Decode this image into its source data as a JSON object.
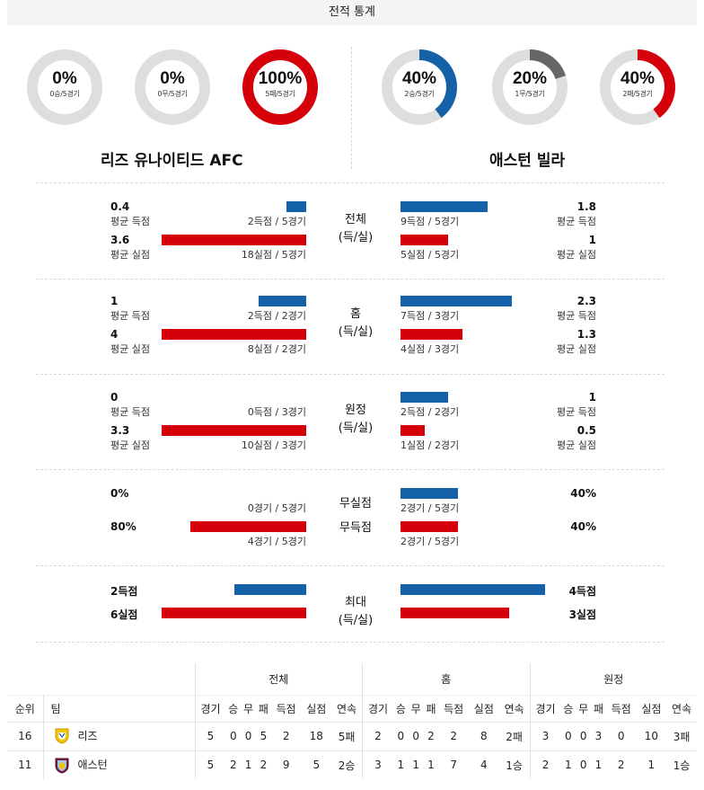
{
  "title": "전적 통계",
  "colors": {
    "blue": "#1461a8",
    "red": "#d5000a",
    "gray": "#666666",
    "ring": "#dedede"
  },
  "teams": {
    "home": {
      "name": "리즈 유나이티드 AFC",
      "donuts": [
        {
          "pct": "0%",
          "count": "0승/5경기",
          "value": 0,
          "color": "#1461a8"
        },
        {
          "pct": "0%",
          "count": "0무/5경기",
          "value": 0,
          "color": "#666666"
        },
        {
          "pct": "100%",
          "count": "5패/5경기",
          "value": 1,
          "color": "#d5000a"
        }
      ]
    },
    "away": {
      "name": "애스턴 빌라",
      "donuts": [
        {
          "pct": "40%",
          "count": "2승/5경기",
          "value": 0.4,
          "color": "#1461a8"
        },
        {
          "pct": "20%",
          "count": "1무/5경기",
          "value": 0.2,
          "color": "#666666"
        },
        {
          "pct": "40%",
          "count": "2패/5경기",
          "value": 0.4,
          "color": "#d5000a"
        }
      ]
    }
  },
  "sections": [
    {
      "center": [
        "전체",
        "(득/실)"
      ],
      "home": [
        {
          "val": "0.4",
          "lab": "평균 득점",
          "sub": "2득점 / 5경기",
          "ratio": 0.135,
          "color": "blue"
        },
        {
          "val": "3.6",
          "lab": "평균 실점",
          "sub": "18실점 / 5경기",
          "ratio": 1.0,
          "color": "red"
        }
      ],
      "away": [
        {
          "val": "1.8",
          "lab": "평균 득점",
          "sub": "9득점 / 5경기",
          "ratio": 0.6,
          "color": "blue"
        },
        {
          "val": "1",
          "lab": "평균 실점",
          "sub": "5실점 / 5경기",
          "ratio": 0.33,
          "color": "red"
        }
      ]
    },
    {
      "center": [
        "홈",
        "(득/실)"
      ],
      "home": [
        {
          "val": "1",
          "lab": "평균 득점",
          "sub": "2득점 / 2경기",
          "ratio": 0.33,
          "color": "blue"
        },
        {
          "val": "4",
          "lab": "평균 실점",
          "sub": "8실점 / 2경기",
          "ratio": 1.0,
          "color": "red"
        }
      ],
      "away": [
        {
          "val": "2.3",
          "lab": "평균 득점",
          "sub": "7득점 / 3경기",
          "ratio": 0.77,
          "color": "blue"
        },
        {
          "val": "1.3",
          "lab": "평균 실점",
          "sub": "4실점 / 3경기",
          "ratio": 0.43,
          "color": "red"
        }
      ]
    },
    {
      "center": [
        "원정",
        "(득/실)"
      ],
      "home": [
        {
          "val": "0",
          "lab": "평균 득점",
          "sub": "0득점 / 3경기",
          "ratio": 0,
          "color": "blue"
        },
        {
          "val": "3.3",
          "lab": "평균 실점",
          "sub": "10실점 / 3경기",
          "ratio": 1.0,
          "color": "red"
        }
      ],
      "away": [
        {
          "val": "1",
          "lab": "평균 득점",
          "sub": "2득점 / 2경기",
          "ratio": 0.33,
          "color": "blue"
        },
        {
          "val": "0.5",
          "lab": "평균 실점",
          "sub": "1실점 / 2경기",
          "ratio": 0.17,
          "color": "red"
        }
      ]
    },
    {
      "center": [
        "무실점",
        "무득점"
      ],
      "home": [
        {
          "val": "0%",
          "lab": "",
          "sub": "0경기 / 5경기",
          "ratio": 0,
          "color": "blue"
        },
        {
          "val": "80%",
          "lab": "",
          "sub": "4경기 / 5경기",
          "ratio": 0.8,
          "color": "red"
        }
      ],
      "away": [
        {
          "val": "40%",
          "lab": "",
          "sub": "2경기 / 5경기",
          "ratio": 0.4,
          "color": "blue"
        },
        {
          "val": "40%",
          "lab": "",
          "sub": "2경기 / 5경기",
          "ratio": 0.4,
          "color": "red"
        }
      ]
    },
    {
      "center": [
        "최대",
        "(득/실)"
      ],
      "home": [
        {
          "val": "2득점",
          "lab": "",
          "sub": "",
          "ratio": 0.5,
          "color": "blue"
        },
        {
          "val": "6실점",
          "lab": "",
          "sub": "",
          "ratio": 1.0,
          "color": "red"
        }
      ],
      "away": [
        {
          "val": "4득점",
          "lab": "",
          "sub": "",
          "ratio": 1.0,
          "color": "blue"
        },
        {
          "val": "3실점",
          "lab": "",
          "sub": "",
          "ratio": 0.75,
          "color": "red"
        }
      ]
    }
  ],
  "standings": {
    "groups": [
      "전체",
      "홈",
      "원정"
    ],
    "rank_header": "순위",
    "team_header": "팀",
    "cols": [
      "경기",
      "승",
      "무",
      "패",
      "득점",
      "실점",
      "연속"
    ],
    "rows": [
      {
        "rank": "16",
        "team": "리즈",
        "emblem": "leeds-crest-icon",
        "all": [
          "5",
          "0",
          "0",
          "5",
          "2",
          "18",
          "5패"
        ],
        "home": [
          "2",
          "0",
          "0",
          "2",
          "2",
          "8",
          "2패"
        ],
        "away": [
          "3",
          "0",
          "0",
          "3",
          "0",
          "10",
          "3패"
        ]
      },
      {
        "rank": "11",
        "team": "애스턴",
        "emblem": "aston-villa-crest-icon",
        "all": [
          "5",
          "2",
          "1",
          "2",
          "9",
          "5",
          "2승"
        ],
        "home": [
          "3",
          "1",
          "1",
          "1",
          "7",
          "4",
          "1승"
        ],
        "away": [
          "2",
          "1",
          "0",
          "1",
          "2",
          "1",
          "1승"
        ]
      }
    ]
  }
}
